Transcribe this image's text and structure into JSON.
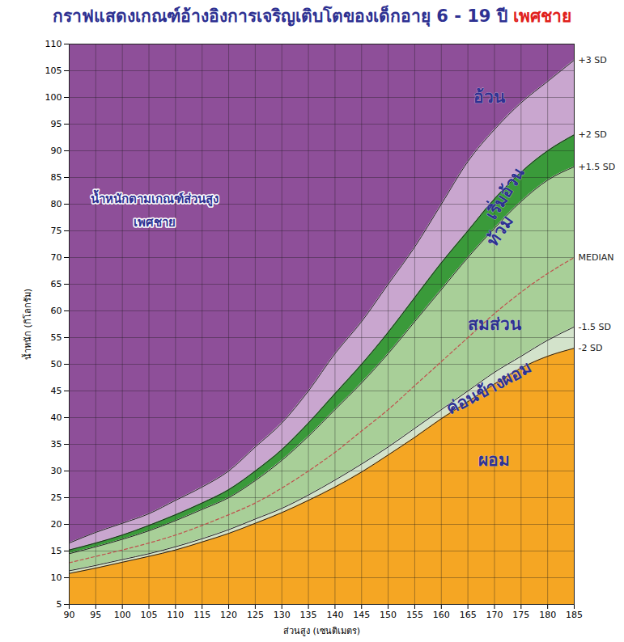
{
  "chart_data": {
    "type": "area",
    "title": "กราฟแสดงเกณฑ์อ้างอิงการเจริญเติบโตของเด็กอายุ 6 - 19 ปี เพศชาย",
    "title_highlight": "เพศชาย",
    "x_label": "ส่วนสูง (เซนติเมตร)",
    "y_label": "น้ำหนัก (กิโลกรัม)",
    "annotations": [
      "น้ำหนักตามเกณฑ์ส่วนสูง",
      "เพศชาย"
    ],
    "x": [
      90,
      95,
      100,
      105,
      110,
      115,
      120,
      125,
      130,
      135,
      140,
      145,
      150,
      155,
      160,
      165,
      170,
      175,
      180,
      185
    ],
    "series": [
      {
        "name": "+3 SD",
        "color": "#222222",
        "line_style": "solid",
        "values": [
          16.5,
          18.5,
          20.2,
          22,
          24.5,
          27,
          30,
          34.5,
          39,
          45,
          52,
          58,
          65,
          72,
          80,
          88,
          94,
          99,
          103,
          107
        ]
      },
      {
        "name": "+2 SD",
        "color": "#222222",
        "line_style": "solid",
        "values": [
          15.2,
          16.5,
          18,
          19.8,
          21.8,
          24,
          26.5,
          30,
          34,
          39,
          44.5,
          50,
          56,
          62.5,
          69,
          75,
          81,
          86,
          90,
          93
        ]
      },
      {
        "name": "+1.5 SD",
        "color": "#222222",
        "line_style": "solid",
        "values": [
          14.5,
          15.8,
          17.2,
          18.8,
          20.7,
          22.8,
          25,
          28.2,
          32,
          36.5,
          41.5,
          46.5,
          52,
          58,
          64,
          70,
          75.5,
          80.5,
          84.5,
          87
        ]
      },
      {
        "name": "MEDIAN",
        "color": "#c0504d",
        "line_style": "dashed",
        "values": [
          12.8,
          14,
          15.2,
          16.5,
          18,
          19.8,
          21.8,
          24,
          26.8,
          30,
          33.5,
          37.5,
          41.5,
          46,
          50.5,
          55,
          59.5,
          63.5,
          67,
          70
        ]
      },
      {
        "name": "-1.5 SD",
        "color": "#222222",
        "line_style": "solid",
        "values": [
          11.3,
          12.3,
          13.4,
          14.5,
          15.8,
          17.3,
          19,
          21,
          23,
          25.5,
          28.3,
          31.3,
          34.5,
          38,
          41.5,
          45,
          48.5,
          51.5,
          54.5,
          57
        ]
      },
      {
        "name": "-2 SD",
        "color": "#222222",
        "line_style": "solid",
        "values": [
          10.8,
          11.8,
          12.9,
          14,
          15.2,
          16.7,
          18.3,
          20.2,
          22.2,
          24.5,
          27,
          29.8,
          33,
          36.3,
          39.8,
          43,
          46.3,
          49.3,
          51.5,
          53
        ]
      }
    ],
    "zones": [
      {
        "name": "อ้วน",
        "color": "#8e4f99",
        "lower": "+3 SD",
        "upper": null
      },
      {
        "name": "เริ่มอ้วน",
        "color": "#c9a6cf",
        "lower": "+2 SD",
        "upper": "+3 SD"
      },
      {
        "name": "ท้วม",
        "color": "#3a9a3a",
        "lower": "+1.5 SD",
        "upper": "+2 SD"
      },
      {
        "name": "สมส่วน",
        "color": "#a8cf98",
        "lower": "-1.5 SD",
        "upper": "+1.5 SD"
      },
      {
        "name": "ค่อนข้างผอม",
        "color": "#d3e3cb",
        "lower": "-2 SD",
        "upper": "-1.5 SD"
      },
      {
        "name": "ผอม",
        "color": "#f5a623",
        "lower": null,
        "upper": "-2 SD"
      }
    ],
    "xlim": [
      90,
      185
    ],
    "xticks": [
      90,
      95,
      100,
      105,
      110,
      115,
      120,
      125,
      130,
      135,
      140,
      145,
      150,
      155,
      160,
      165,
      170,
      175,
      180,
      185
    ],
    "ylim": [
      5,
      110
    ],
    "yticks": [
      5,
      10,
      15,
      20,
      25,
      30,
      35,
      40,
      45,
      50,
      55,
      60,
      65,
      70,
      75,
      80,
      85,
      90,
      95,
      100,
      105,
      110
    ],
    "grid": true
  }
}
